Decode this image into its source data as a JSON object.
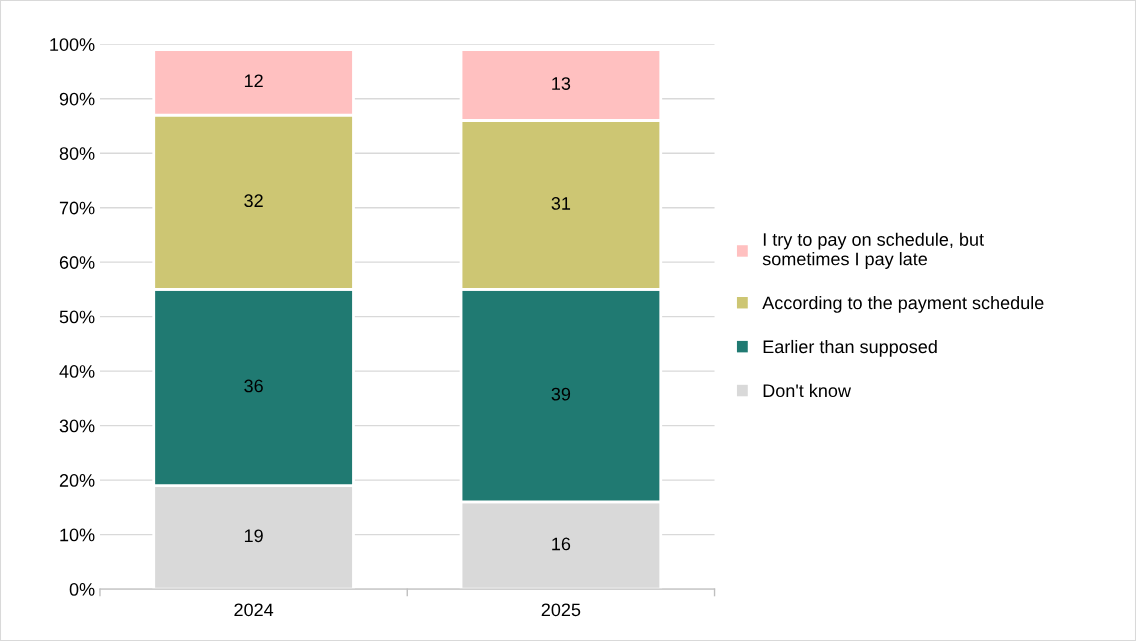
{
  "chart_data": {
    "type": "bar",
    "stacked": true,
    "categories": [
      "2024",
      "2025"
    ],
    "series": [
      {
        "name": "Don't know",
        "color": "#d9d9d9",
        "values": [
          19,
          16
        ]
      },
      {
        "name": "Earlier than supposed",
        "color": "#207a72",
        "values": [
          36,
          39
        ]
      },
      {
        "name": "According to the payment schedule",
        "color": "#cdc673",
        "values": [
          32,
          31
        ]
      },
      {
        "name": "I try to pay on schedule, but\nsometimes I pay late",
        "color": "#ffc0c0",
        "values": [
          12,
          13
        ]
      }
    ],
    "ylim": [
      0,
      100
    ],
    "yticks": [
      {
        "value": 0,
        "label": "0%"
      },
      {
        "value": 10,
        "label": "10%"
      },
      {
        "value": 20,
        "label": "20%"
      },
      {
        "value": 30,
        "label": "30%"
      },
      {
        "value": 40,
        "label": "40%"
      },
      {
        "value": 50,
        "label": "50%"
      },
      {
        "value": 60,
        "label": "60%"
      },
      {
        "value": 70,
        "label": "70%"
      },
      {
        "value": 80,
        "label": "80%"
      },
      {
        "value": 90,
        "label": "90%"
      },
      {
        "value": 100,
        "label": "100%"
      }
    ],
    "grid": "y",
    "legend": "right",
    "data_labels": true
  }
}
